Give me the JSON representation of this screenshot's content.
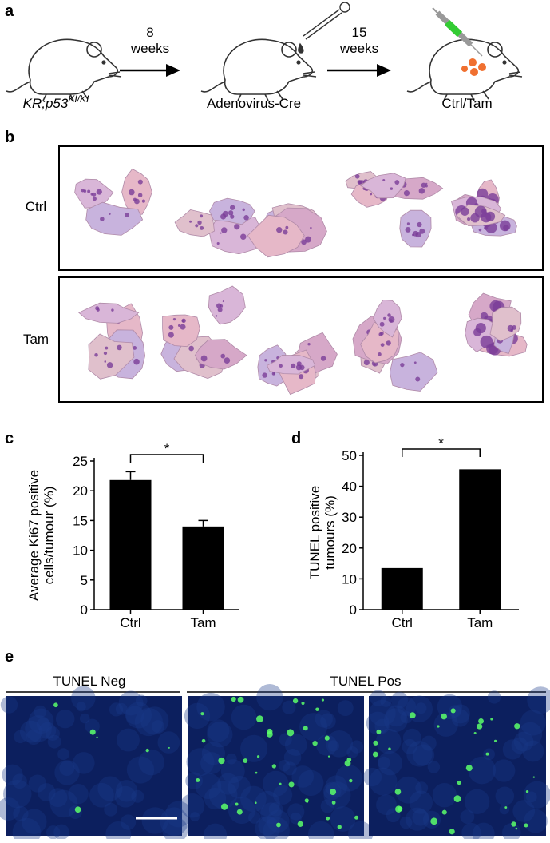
{
  "panels": {
    "a": "a",
    "b": "b",
    "c": "c",
    "d": "d",
    "e": "e"
  },
  "scheme": {
    "genotype": "KR;p53",
    "genotype_sup": "KI/KI",
    "step1_duration": [
      "8",
      "weeks"
    ],
    "step1_treatment": "Adenovirus-Cre",
    "step2_duration": [
      "15",
      "weeks"
    ],
    "step2_treatment": "Ctrl/Tam"
  },
  "sections": {
    "rows": [
      "Ctrl",
      "Tam"
    ]
  },
  "tunel": {
    "negative": "TUNEL Neg",
    "positive": "TUNEL Pos"
  },
  "chart_data": [
    {
      "type": "bar",
      "ylabel": [
        "Average Ki67 positive",
        "cells/tumour (%)"
      ],
      "categories": [
        "Ctrl",
        "Tam"
      ],
      "values": [
        21.8,
        14.0
      ],
      "errors": [
        1.4,
        1.0
      ],
      "color": "#000000",
      "ylim": [
        0,
        25
      ],
      "yticks": [
        0,
        5,
        10,
        15,
        20,
        25
      ],
      "annotation": "*"
    },
    {
      "type": "bar",
      "ylabel": [
        "TUNEL positive",
        "tumours (%)"
      ],
      "categories": [
        "Ctrl",
        "Tam"
      ],
      "values": [
        13.5,
        45.5
      ],
      "color": "#000000",
      "ylim": [
        0,
        50
      ],
      "yticks": [
        0,
        10,
        20,
        30,
        40,
        50
      ],
      "annotation": "*"
    }
  ]
}
